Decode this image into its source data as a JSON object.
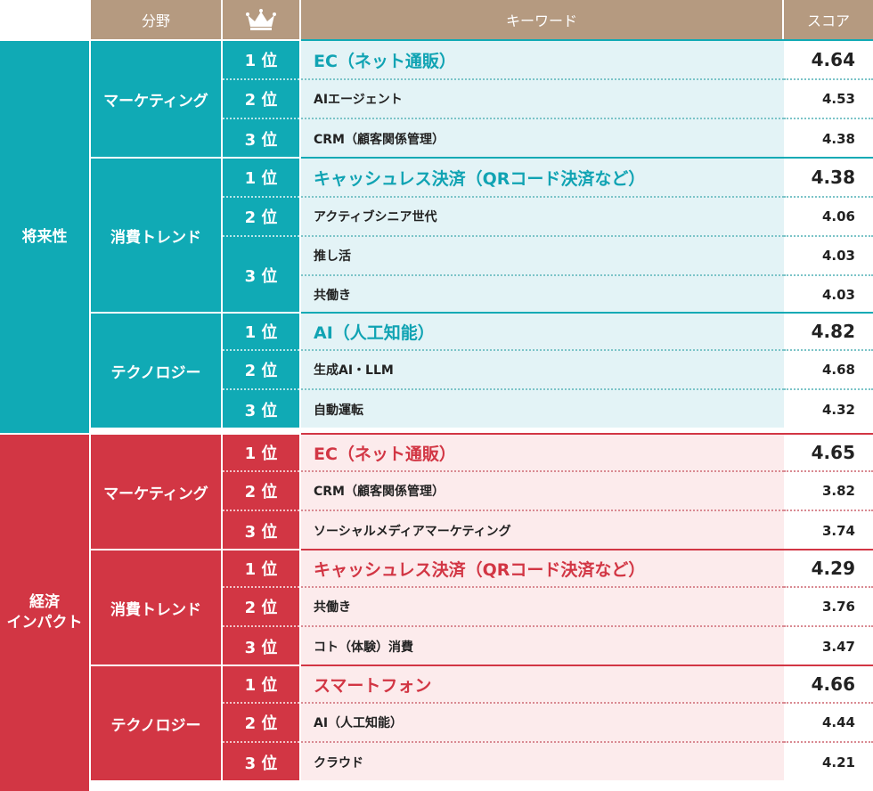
{
  "header": {
    "field": "分野",
    "keyword": "キーワード",
    "score": "スコア"
  },
  "colors": {
    "header": "#b59a80",
    "teal": "#10aab5",
    "red": "#d23644",
    "teal_light": "#e3f3f6",
    "red_light": "#fcebec",
    "white": "#ffffff"
  },
  "categories": [
    {
      "name": "将来性",
      "fields": [
        {
          "name": "マーケティング",
          "ranks": [
            {
              "rank": "1 位",
              "items": [
                {
                  "keyword": "EC（ネット通販）",
                  "score": "4.64"
                }
              ]
            },
            {
              "rank": "2 位",
              "items": [
                {
                  "keyword": "AIエージェント",
                  "score": "4.53"
                }
              ]
            },
            {
              "rank": "3 位",
              "items": [
                {
                  "keyword": "CRM（顧客関係管理）",
                  "score": "4.38"
                }
              ]
            }
          ]
        },
        {
          "name": "消費トレンド",
          "ranks": [
            {
              "rank": "1 位",
              "items": [
                {
                  "keyword": "キャッシュレス決済（QRコード決済など）",
                  "score": "4.38"
                }
              ]
            },
            {
              "rank": "2 位",
              "items": [
                {
                  "keyword": "アクティブシニア世代",
                  "score": "4.06"
                }
              ]
            },
            {
              "rank": "3 位",
              "items": [
                {
                  "keyword": "推し活",
                  "score": "4.03"
                },
                {
                  "keyword": "共働き",
                  "score": "4.03"
                }
              ]
            }
          ]
        },
        {
          "name": "テクノロジー",
          "ranks": [
            {
              "rank": "1 位",
              "items": [
                {
                  "keyword": "AI（人工知能）",
                  "score": "4.82"
                }
              ]
            },
            {
              "rank": "2 位",
              "items": [
                {
                  "keyword": "生成AI・LLM",
                  "score": "4.68"
                }
              ]
            },
            {
              "rank": "3 位",
              "items": [
                {
                  "keyword": "自動運転",
                  "score": "4.32"
                }
              ]
            }
          ]
        }
      ]
    },
    {
      "name": "経済\nインパクト",
      "fields": [
        {
          "name": "マーケティング",
          "ranks": [
            {
              "rank": "1 位",
              "items": [
                {
                  "keyword": "EC（ネット通販）",
                  "score": "4.65"
                }
              ]
            },
            {
              "rank": "2 位",
              "items": [
                {
                  "keyword": "CRM（顧客関係管理）",
                  "score": "3.82"
                }
              ]
            },
            {
              "rank": "3 位",
              "items": [
                {
                  "keyword": "ソーシャルメディアマーケティング",
                  "score": "3.74"
                }
              ]
            }
          ]
        },
        {
          "name": "消費トレンド",
          "ranks": [
            {
              "rank": "1 位",
              "items": [
                {
                  "keyword": "キャッシュレス決済（QRコード決済など）",
                  "score": "4.29"
                }
              ]
            },
            {
              "rank": "2 位",
              "items": [
                {
                  "keyword": "共働き",
                  "score": "3.76"
                }
              ]
            },
            {
              "rank": "3 位",
              "items": [
                {
                  "keyword": "コト（体験）消費",
                  "score": "3.47"
                }
              ]
            }
          ]
        },
        {
          "name": "テクノロジー",
          "ranks": [
            {
              "rank": "1 位",
              "items": [
                {
                  "keyword": "スマートフォン",
                  "score": "4.66"
                }
              ]
            },
            {
              "rank": "2 位",
              "items": [
                {
                  "keyword": "AI（人工知能）",
                  "score": "4.44"
                }
              ]
            },
            {
              "rank": "3 位",
              "items": [
                {
                  "keyword": "クラウド",
                  "score": "4.21"
                }
              ]
            }
          ]
        }
      ]
    }
  ]
}
